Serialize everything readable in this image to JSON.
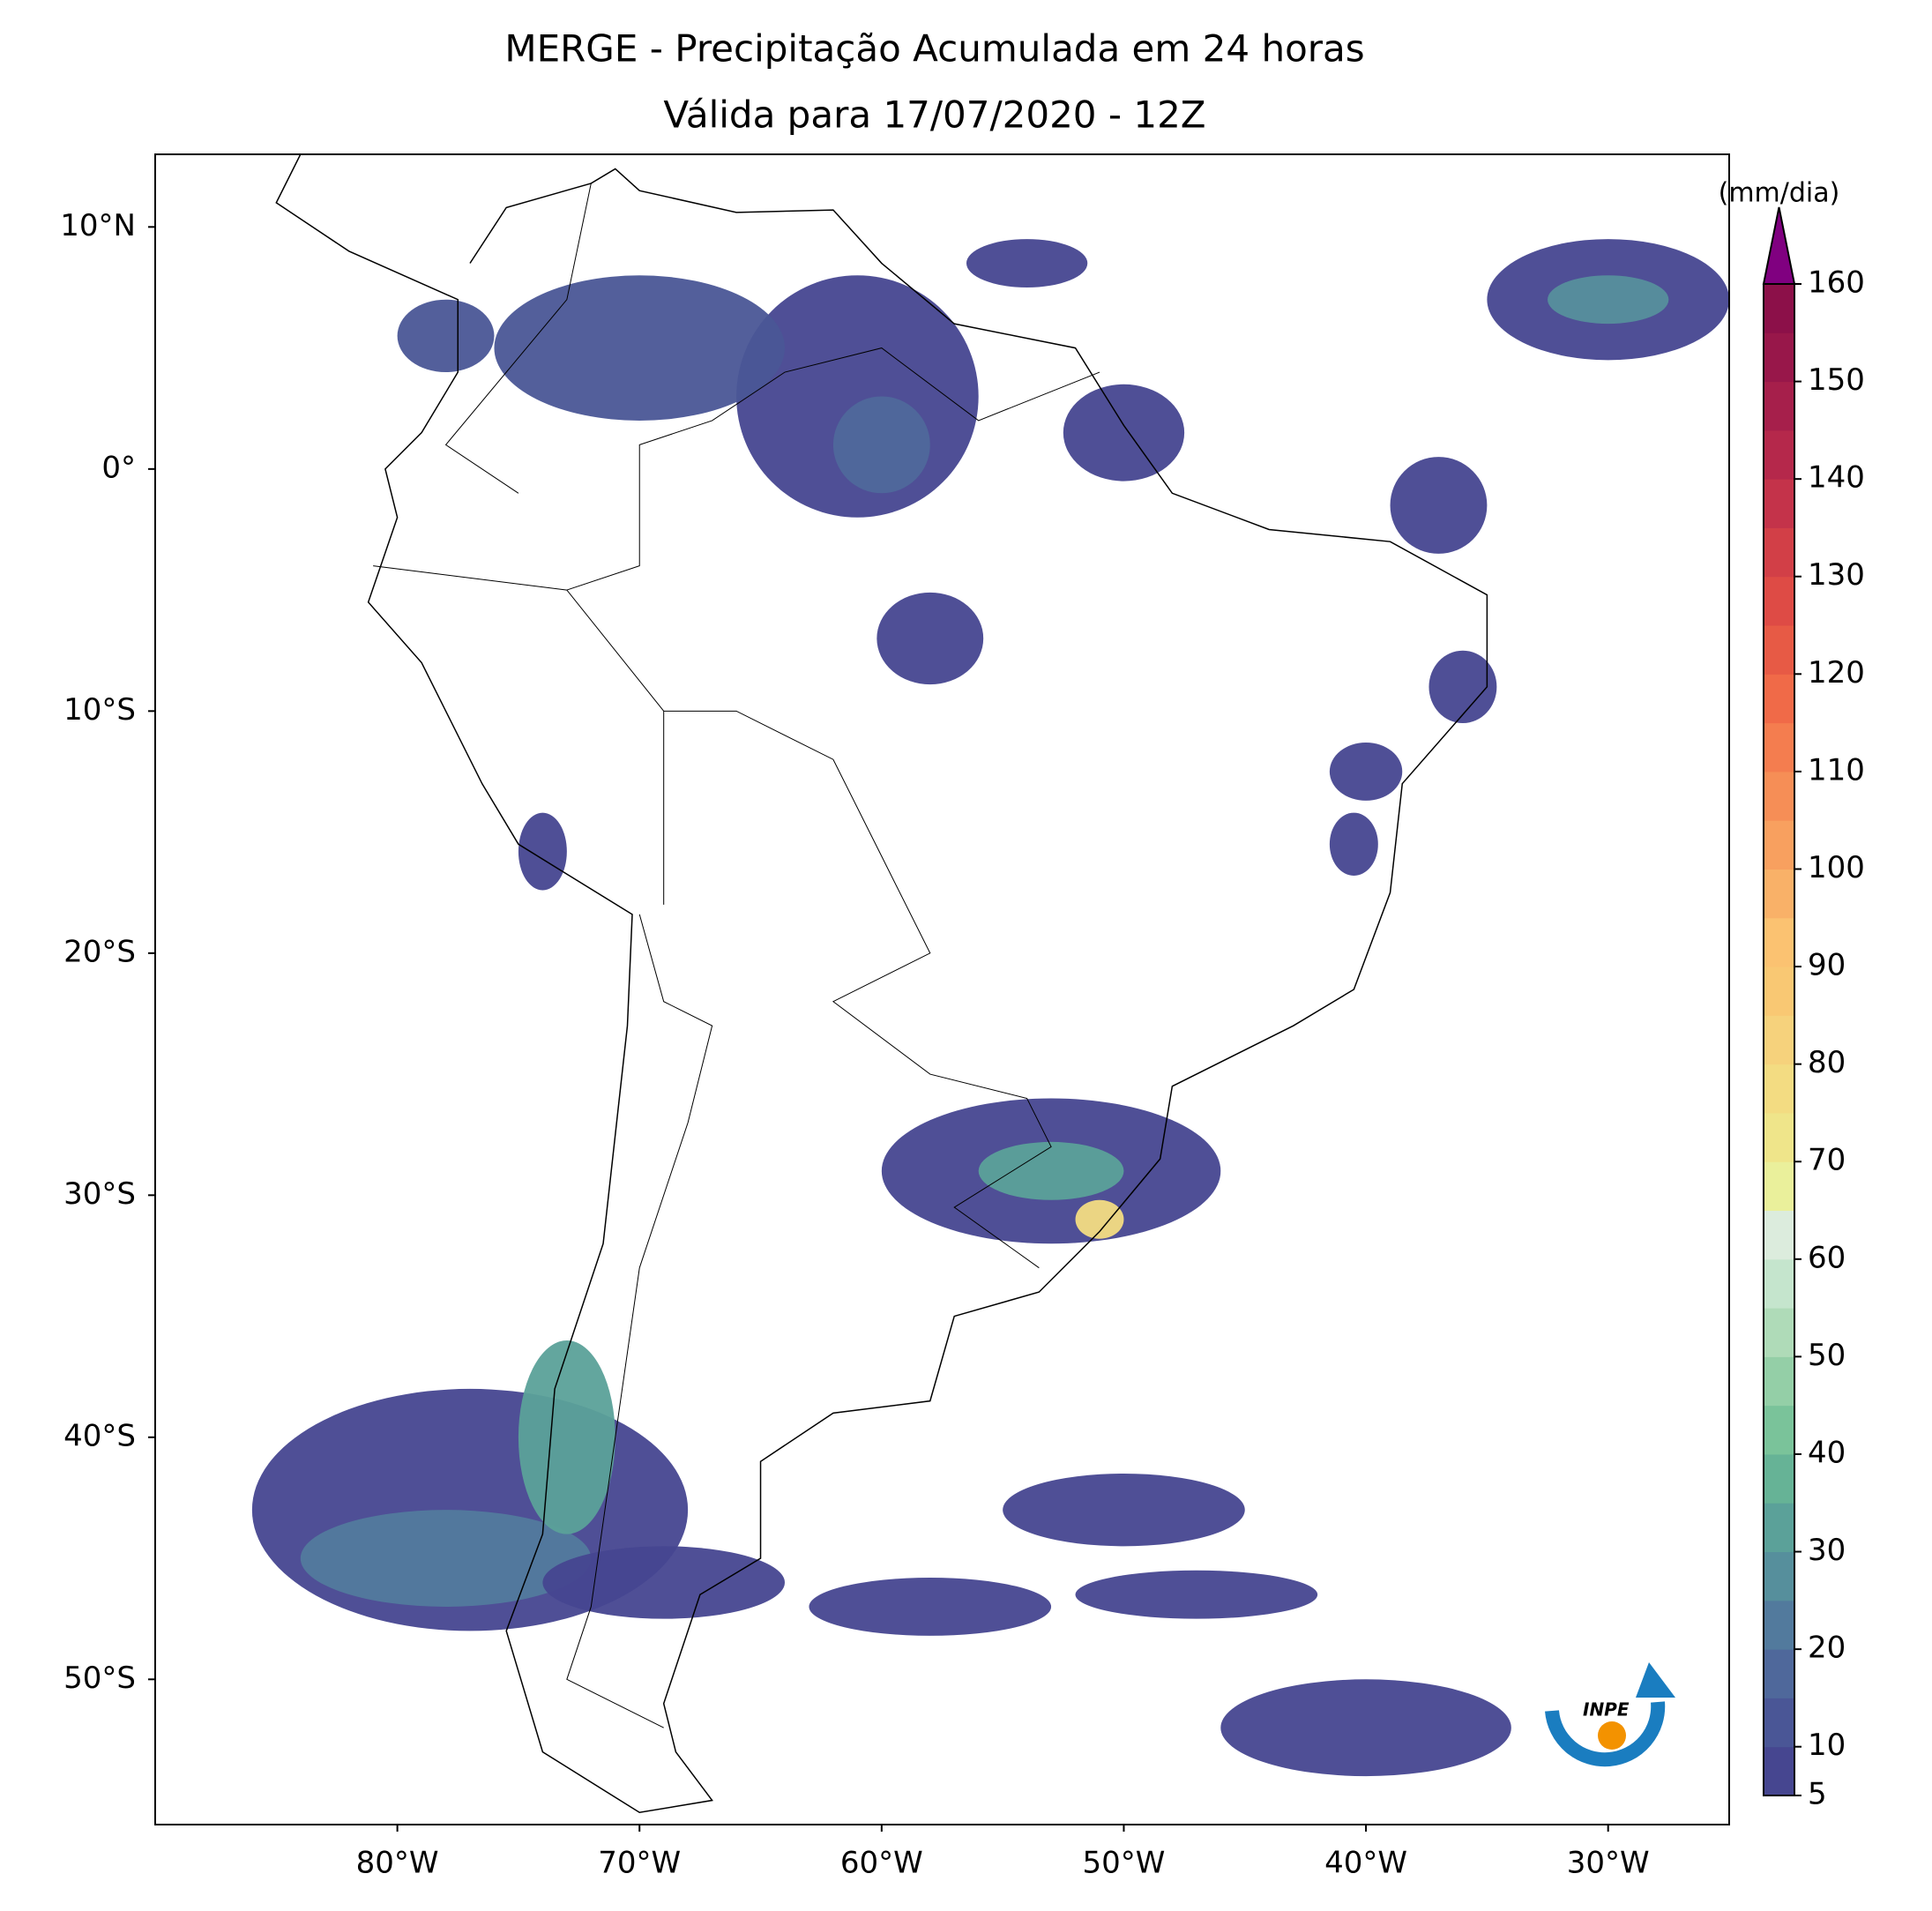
{
  "chart_data": {
    "type": "map",
    "title": "MERGE - Precipitação Acumulada em 24 horas",
    "subtitle": "Válida para 17/07/2020 - 12Z",
    "xlim": [
      -90,
      -25
    ],
    "ylim": [
      -56,
      13
    ],
    "xticks": [
      {
        "value": -80,
        "label": "80°W"
      },
      {
        "value": -70,
        "label": "70°W"
      },
      {
        "value": -60,
        "label": "60°W"
      },
      {
        "value": -50,
        "label": "50°W"
      },
      {
        "value": -40,
        "label": "40°W"
      },
      {
        "value": -30,
        "label": "30°W"
      }
    ],
    "yticks": [
      {
        "value": 10,
        "label": "10°N"
      },
      {
        "value": 0,
        "label": "0°"
      },
      {
        "value": -10,
        "label": "10°S"
      },
      {
        "value": -20,
        "label": "20°S"
      },
      {
        "value": -30,
        "label": "30°S"
      },
      {
        "value": -40,
        "label": "40°S"
      },
      {
        "value": -50,
        "label": "50°S"
      }
    ],
    "colorbar": {
      "label": "(mm/dia)",
      "lim": [
        5,
        160
      ],
      "ticks": [
        5,
        10,
        20,
        30,
        40,
        50,
        60,
        70,
        80,
        90,
        100,
        110,
        120,
        130,
        140,
        150,
        160
      ],
      "colors": [
        "#464690",
        "#4a5696",
        "#4f689b",
        "#527a9d",
        "#568f9c",
        "#5ba199",
        "#66b396",
        "#7ac39a",
        "#94cfa7",
        "#afdbb8",
        "#c5e5cd",
        "#dcecdd",
        "#eaf09b",
        "#efe58a",
        "#f3dc82",
        "#f6d27c",
        "#f9c873",
        "#fbc271",
        "#f9b168",
        "#f8a05f",
        "#f68e56",
        "#f47d4f",
        "#f06a48",
        "#e75a45",
        "#de4b45",
        "#d23f47",
        "#c4334a",
        "#b5284b",
        "#a61f4b",
        "#98174a",
        "#8c1049"
      ],
      "extend_color": "#800080"
    },
    "logo_text": "INPE"
  }
}
